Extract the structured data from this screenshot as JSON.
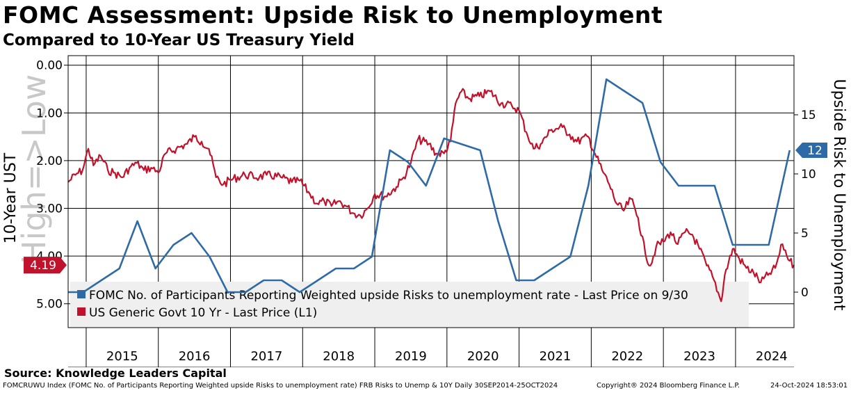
{
  "title": "FOMC Assessment: Upside Risk to Unemployment",
  "subtitle": "Compared to 10-Year US Treasury Yield",
  "source": "Source: Knowledge Leaders Capital",
  "footer": {
    "left": "FOMCRUWU Index (FOMC No. of Participants Reporting Weighted upside Risks to unemployment rate) FRB Risks to Unemp & 10Y  Daily 30SEP2014-25OCT2024",
    "middle": "Copyright® 2024 Bloomberg Finance L.P.",
    "right": "24-Oct-2024 18:53:01"
  },
  "colors": {
    "fomc": "#2e6aa6",
    "ust": "#c0122b",
    "legend_bg": "#efefef"
  },
  "chart_data": {
    "type": "line",
    "x_range": [
      2014.75,
      2024.81
    ],
    "x_tick_labels": [
      "2015",
      "2016",
      "2017",
      "2018",
      "2019",
      "2020",
      "2021",
      "2022",
      "2023",
      "2024"
    ],
    "left_axis": {
      "title": "10-Year UST",
      "ylim": [
        5.5,
        -0.2
      ],
      "inverted": true,
      "tick_labels": [
        "0.00",
        "1.00",
        "2.00",
        "3.00",
        "4.00",
        "5.00"
      ],
      "tick_values": [
        0,
        1,
        2,
        3,
        4,
        5
      ],
      "watermark": "High=>Low",
      "last_value_label": "4.19"
    },
    "right_axis": {
      "title": "Upside Risk to Unemployment",
      "ylim": [
        -3,
        20
      ],
      "tick_labels": [
        "0",
        "5",
        "10",
        "15"
      ],
      "tick_values": [
        0,
        5,
        10,
        15
      ],
      "last_value_label": "12"
    },
    "legend": [
      "FOMC No. of Participants Reporting Weighted upside Risks to unemployment rate - Last Price on 9/30",
      "US Generic Govt 10 Yr - Last Price (L1)"
    ],
    "series": [
      {
        "name": "FOMC No. of Participants Reporting Weighted upside Risks to unemployment rate",
        "axis": "right",
        "x": [
          2014.75,
          2014.96,
          2015.21,
          2015.46,
          2015.71,
          2015.96,
          2016.21,
          2016.46,
          2016.71,
          2016.96,
          2017.21,
          2017.46,
          2017.71,
          2017.96,
          2018.21,
          2018.46,
          2018.71,
          2018.96,
          2019.21,
          2019.46,
          2019.71,
          2019.96,
          2020.46,
          2020.71,
          2020.96,
          2021.21,
          2021.46,
          2021.71,
          2021.96,
          2022.21,
          2022.46,
          2022.71,
          2022.96,
          2023.21,
          2023.46,
          2023.71,
          2023.96,
          2024.21,
          2024.46,
          2024.75
        ],
        "values": [
          0,
          0,
          1,
          2,
          6,
          2,
          4,
          5,
          3,
          0,
          0,
          1,
          1,
          0,
          1,
          2,
          2,
          3,
          12,
          11,
          9,
          13,
          12,
          6,
          1,
          1,
          2,
          3,
          9,
          18,
          17,
          16,
          11,
          9,
          9,
          9,
          4,
          4,
          4,
          12
        ]
      },
      {
        "name": "US Generic Govt 10 Yr",
        "axis": "left",
        "x": [
          2014.75,
          2014.85,
          2014.95,
          2015.03,
          2015.1,
          2015.2,
          2015.3,
          2015.38,
          2015.5,
          2015.6,
          2015.7,
          2015.8,
          2015.9,
          2016.0,
          2016.1,
          2016.25,
          2016.4,
          2016.5,
          2016.6,
          2016.7,
          2016.8,
          2016.9,
          2017.0,
          2017.2,
          2017.4,
          2017.5,
          2017.7,
          2017.85,
          2017.96,
          2018.1,
          2018.2,
          2018.3,
          2018.4,
          2018.5,
          2018.6,
          2018.7,
          2018.8,
          2018.9,
          2019.0,
          2019.15,
          2019.3,
          2019.4,
          2019.5,
          2019.6,
          2019.75,
          2019.85,
          2019.96,
          2020.05,
          2020.12,
          2020.2,
          2020.3,
          2020.45,
          2020.6,
          2020.75,
          2020.9,
          2021.0,
          2021.1,
          2021.2,
          2021.3,
          2021.45,
          2021.6,
          2021.7,
          2021.8,
          2021.96,
          2022.05,
          2022.15,
          2022.25,
          2022.35,
          2022.45,
          2022.55,
          2022.65,
          2022.75,
          2022.82,
          2022.9,
          2023.0,
          2023.1,
          2023.2,
          2023.3,
          2023.4,
          2023.5,
          2023.6,
          2023.7,
          2023.8,
          2023.85,
          2023.96,
          2024.05,
          2024.15,
          2024.25,
          2024.35,
          2024.45,
          2024.55,
          2024.65,
          2024.75,
          2024.81
        ],
        "values": [
          2.45,
          2.3,
          2.2,
          1.75,
          2.1,
          1.9,
          2.2,
          2.25,
          2.35,
          2.15,
          2.05,
          2.2,
          2.15,
          2.25,
          1.85,
          1.75,
          1.65,
          1.5,
          1.6,
          1.75,
          2.35,
          2.5,
          2.4,
          2.3,
          2.35,
          2.3,
          2.35,
          2.45,
          2.42,
          2.7,
          2.9,
          2.85,
          2.95,
          2.85,
          2.95,
          3.1,
          3.15,
          3.0,
          2.7,
          2.75,
          2.55,
          2.35,
          2.05,
          1.55,
          1.65,
          1.85,
          1.85,
          1.6,
          0.8,
          0.55,
          0.7,
          0.65,
          0.55,
          0.8,
          0.85,
          0.95,
          1.4,
          1.75,
          1.65,
          1.35,
          1.3,
          1.45,
          1.6,
          1.5,
          1.85,
          2.2,
          2.5,
          2.9,
          3.05,
          2.8,
          3.2,
          3.95,
          4.2,
          3.8,
          3.7,
          3.5,
          3.75,
          3.5,
          3.55,
          3.85,
          4.2,
          4.5,
          4.95,
          4.4,
          3.85,
          4.05,
          4.25,
          4.35,
          4.55,
          4.4,
          4.25,
          3.75,
          4.1,
          4.19
        ]
      }
    ]
  }
}
